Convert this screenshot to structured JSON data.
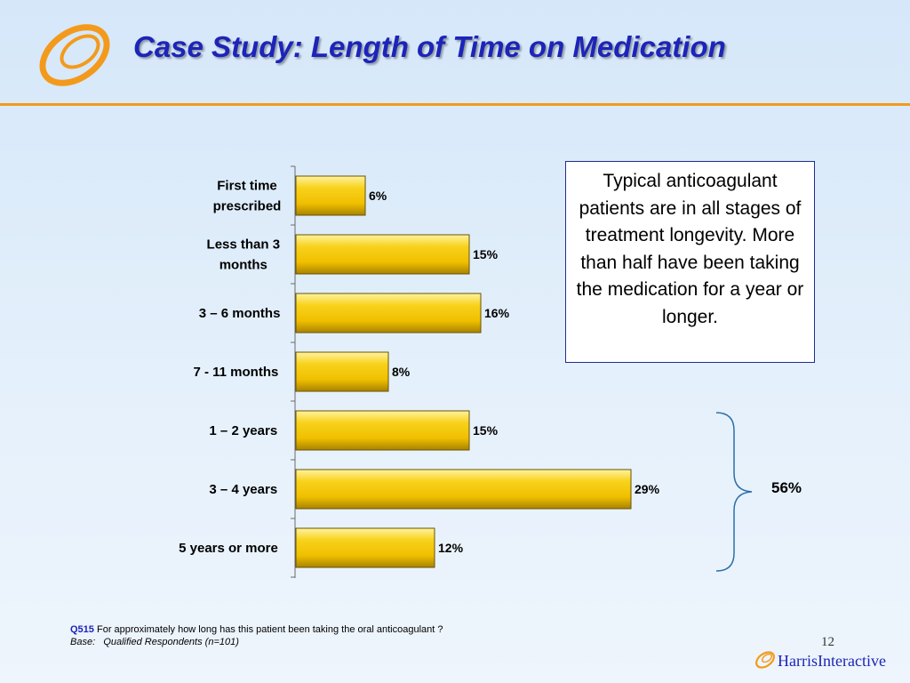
{
  "title": "Case Study: Length of Time on Medication",
  "colors": {
    "accent": "#f39a1c",
    "title": "#1d24b8",
    "bar": "#f2c200",
    "bar_edge": "#6b5200"
  },
  "chart_data": {
    "type": "bar",
    "orientation": "horizontal",
    "categories": [
      [
        "First time",
        "prescribed"
      ],
      [
        "Less than 3",
        "months"
      ],
      [
        "3 – 6 months"
      ],
      [
        "7 - 11 months"
      ],
      [
        "1 – 2 years"
      ],
      [
        "3 – 4 years"
      ],
      [
        "5 years or more"
      ]
    ],
    "values": [
      6,
      15,
      16,
      8,
      15,
      29,
      12
    ],
    "value_labels": [
      "6%",
      "15%",
      "16%",
      "8%",
      "15%",
      "29%",
      "12%"
    ],
    "unit": "%",
    "xlim": [
      0,
      32
    ],
    "grid": false,
    "legend": "none"
  },
  "callout": {
    "text": "Typical anticoagulant patients are in all stages of treatment longevity.  More than half have been taking the medication for a year or longer."
  },
  "brace_label": "56%",
  "footnote": {
    "question_id": "Q515",
    "question_text": "For approximately how long has this patient been taking the oral anticoagulant ?",
    "base_label": "Base:",
    "base_text": "Qualified Respondents (n=101)"
  },
  "page_number": "12",
  "brand": {
    "name_part1": "Harris",
    "name_part2": "Interactive"
  }
}
